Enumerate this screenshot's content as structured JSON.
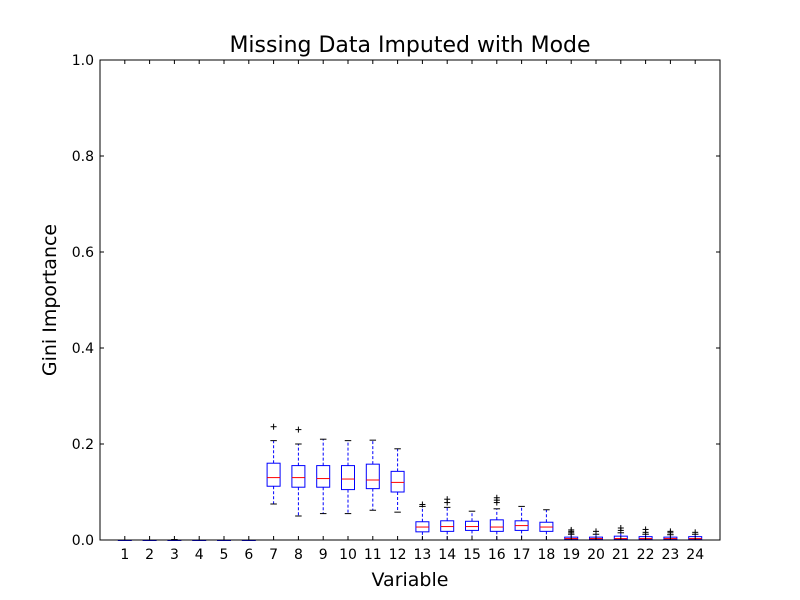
{
  "chart_data": {
    "type": "box",
    "title": "Missing Data Imputed with Mode",
    "xlabel": "Variable",
    "ylabel": "Gini Importance",
    "ylim": [
      0.0,
      1.0
    ],
    "yticks": [
      "0.0",
      "0.2",
      "0.4",
      "0.6",
      "0.8",
      "1.0"
    ],
    "categories": [
      "1",
      "2",
      "3",
      "4",
      "5",
      "6",
      "7",
      "8",
      "9",
      "10",
      "11",
      "12",
      "13",
      "14",
      "15",
      "16",
      "17",
      "18",
      "19",
      "20",
      "21",
      "22",
      "23",
      "24"
    ],
    "box_color": "#0000ff",
    "median_color": "#ff0000",
    "boxes": [
      {
        "whislo": 0.0,
        "q1": 0.0,
        "med": 0.0,
        "q3": 0.0,
        "whishi": 0.0,
        "fliers": []
      },
      {
        "whislo": 0.0,
        "q1": 0.0,
        "med": 0.0,
        "q3": 0.0,
        "whishi": 0.0,
        "fliers": []
      },
      {
        "whislo": 0.0,
        "q1": 0.0,
        "med": 0.0,
        "q3": 0.0,
        "whishi": 0.001,
        "fliers": []
      },
      {
        "whislo": 0.0,
        "q1": 0.0,
        "med": 0.0,
        "q3": 0.0,
        "whishi": 0.0,
        "fliers": []
      },
      {
        "whislo": 0.0,
        "q1": 0.0,
        "med": 0.0,
        "q3": 0.0,
        "whishi": 0.0,
        "fliers": []
      },
      {
        "whislo": 0.0,
        "q1": 0.0,
        "med": 0.0,
        "q3": 0.0,
        "whishi": 0.0,
        "fliers": []
      },
      {
        "whislo": 0.075,
        "q1": 0.112,
        "med": 0.13,
        "q3": 0.16,
        "whishi": 0.207,
        "fliers": [
          0.236
        ]
      },
      {
        "whislo": 0.05,
        "q1": 0.11,
        "med": 0.13,
        "q3": 0.155,
        "whishi": 0.2,
        "fliers": [
          0.23
        ]
      },
      {
        "whislo": 0.055,
        "q1": 0.11,
        "med": 0.128,
        "q3": 0.155,
        "whishi": 0.21,
        "fliers": []
      },
      {
        "whislo": 0.055,
        "q1": 0.105,
        "med": 0.127,
        "q3": 0.155,
        "whishi": 0.207,
        "fliers": []
      },
      {
        "whislo": 0.062,
        "q1": 0.107,
        "med": 0.125,
        "q3": 0.158,
        "whishi": 0.208,
        "fliers": []
      },
      {
        "whislo": 0.058,
        "q1": 0.1,
        "med": 0.12,
        "q3": 0.143,
        "whishi": 0.19,
        "fliers": []
      },
      {
        "whislo": 0.0,
        "q1": 0.017,
        "med": 0.027,
        "q3": 0.038,
        "whishi": 0.07,
        "fliers": [
          0.074
        ]
      },
      {
        "whislo": 0.0,
        "q1": 0.018,
        "med": 0.028,
        "q3": 0.04,
        "whishi": 0.068,
        "fliers": [
          0.078,
          0.085
        ]
      },
      {
        "whislo": 0.0,
        "q1": 0.02,
        "med": 0.028,
        "q3": 0.039,
        "whishi": 0.06,
        "fliers": []
      },
      {
        "whislo": 0.0,
        "q1": 0.018,
        "med": 0.027,
        "q3": 0.042,
        "whishi": 0.065,
        "fliers": [
          0.078,
          0.083,
          0.088
        ]
      },
      {
        "whislo": 0.0,
        "q1": 0.02,
        "med": 0.03,
        "q3": 0.04,
        "whishi": 0.07,
        "fliers": []
      },
      {
        "whislo": 0.0,
        "q1": 0.018,
        "med": 0.027,
        "q3": 0.037,
        "whishi": 0.063,
        "fliers": []
      },
      {
        "whislo": 0.0,
        "q1": 0.001,
        "med": 0.003,
        "q3": 0.006,
        "whishi": 0.012,
        "fliers": [
          0.015,
          0.018,
          0.021
        ]
      },
      {
        "whislo": 0.0,
        "q1": 0.001,
        "med": 0.003,
        "q3": 0.006,
        "whishi": 0.012,
        "fliers": [
          0.018
        ]
      },
      {
        "whislo": 0.0,
        "q1": 0.001,
        "med": 0.003,
        "q3": 0.008,
        "whishi": 0.015,
        "fliers": [
          0.02,
          0.025
        ]
      },
      {
        "whislo": 0.0,
        "q1": 0.001,
        "med": 0.003,
        "q3": 0.007,
        "whishi": 0.012,
        "fliers": [
          0.016,
          0.022
        ]
      },
      {
        "whislo": 0.0,
        "q1": 0.001,
        "med": 0.003,
        "q3": 0.006,
        "whishi": 0.011,
        "fliers": [
          0.015,
          0.018
        ]
      },
      {
        "whislo": 0.0,
        "q1": 0.001,
        "med": 0.003,
        "q3": 0.007,
        "whishi": 0.012,
        "fliers": [
          0.016
        ]
      }
    ]
  }
}
